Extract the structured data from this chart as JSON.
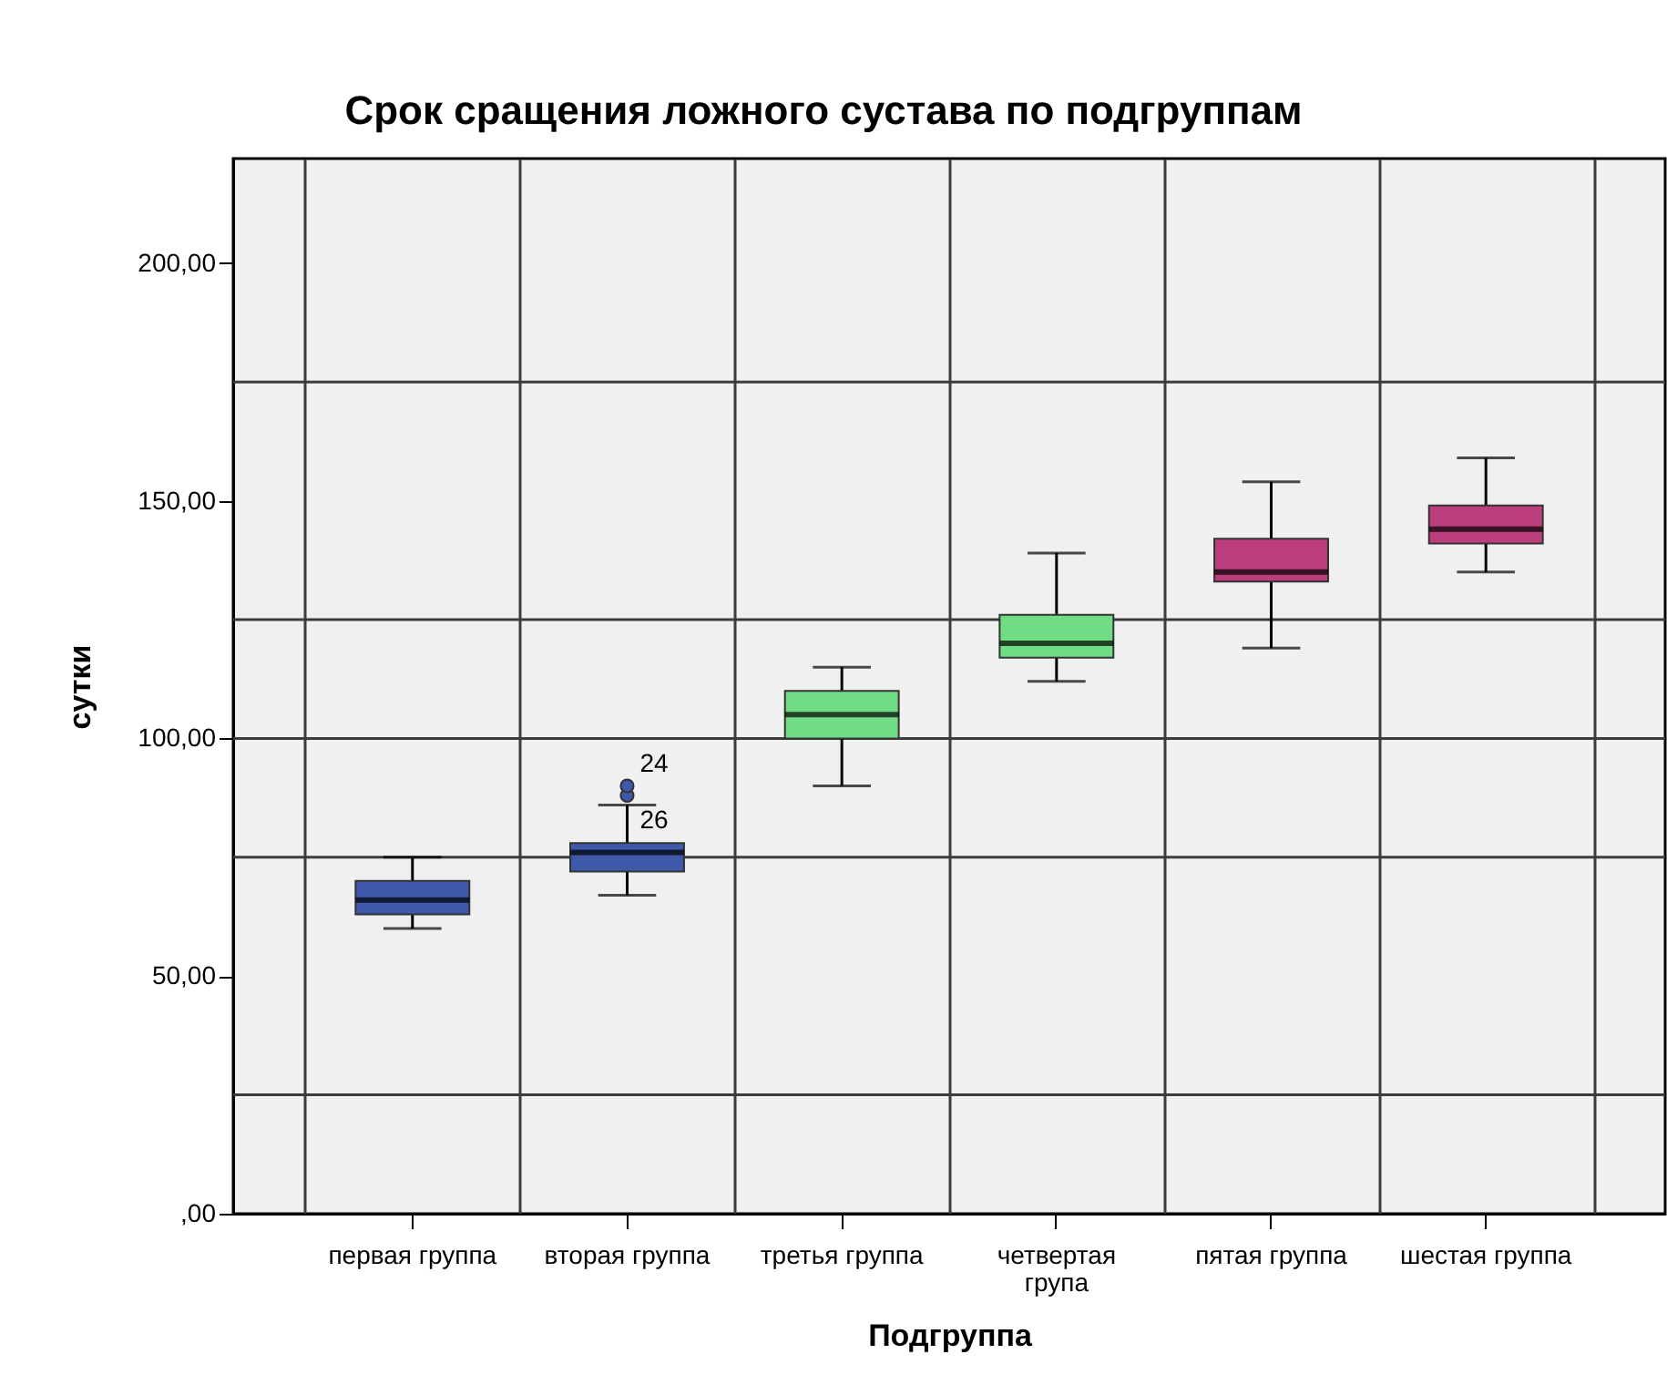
{
  "chart_data": {
    "type": "box",
    "title": "Срок сращения ложного сустава по подгруппам",
    "xlabel": "Подгруппа",
    "ylabel": "сутки",
    "categories": [
      "первая группа",
      "вторая группа",
      "третья группа",
      "четвертая група",
      "пятая группа",
      "шестая группа"
    ],
    "boxes": [
      {
        "low": 60,
        "q1": 63,
        "median": 66,
        "q3": 70,
        "high": 75
      },
      {
        "low": 67,
        "q1": 72,
        "median": 76,
        "q3": 78,
        "high": 86
      },
      {
        "low": 90,
        "q1": 100,
        "median": 105,
        "q3": 110,
        "high": 115
      },
      {
        "low": 112,
        "q1": 117,
        "median": 120,
        "q3": 126,
        "high": 139
      },
      {
        "low": 119,
        "q1": 133,
        "median": 135,
        "q3": 142,
        "high": 154
      },
      {
        "low": 135,
        "q1": 141,
        "median": 144,
        "q3": 149,
        "high": 159
      }
    ],
    "colors": [
      "#3e58aa",
      "#3e58aa",
      "#70dc84",
      "#70dc84",
      "#bc3e7c",
      "#bc3e7c"
    ],
    "series": [
      {
        "type": "scatter",
        "x": [
          "вторая группа",
          "вторая группа"
        ],
        "values": [
          88,
          90
        ],
        "color": "#3e58aa",
        "marker": "circle"
      }
    ],
    "ylim": [
      0,
      222
    ],
    "yticks": [
      {
        "value": 0,
        "label": ",00"
      },
      {
        "value": 50,
        "label": "50,00"
      },
      {
        "value": 100,
        "label": "100,00"
      },
      {
        "value": 150,
        "label": "150,00"
      },
      {
        "value": 200,
        "label": "200,00"
      }
    ],
    "grid": "x",
    "ref_lines": [
      {
        "axis": "y",
        "value": 25,
        "color": "#3c3c3c"
      },
      {
        "axis": "y",
        "value": 75,
        "color": "#3c3c3c"
      },
      {
        "axis": "y",
        "value": 100,
        "color": "#3c3c3c"
      },
      {
        "axis": "y",
        "value": 125,
        "color": "#3c3c3c"
      },
      {
        "axis": "y",
        "value": 175,
        "color": "#3c3c3c"
      }
    ],
    "annotations": [
      {
        "text": "24",
        "x": "вторая группа",
        "y": 90
      },
      {
        "text": "26",
        "x": "вторая группа",
        "y": 88
      }
    ]
  }
}
